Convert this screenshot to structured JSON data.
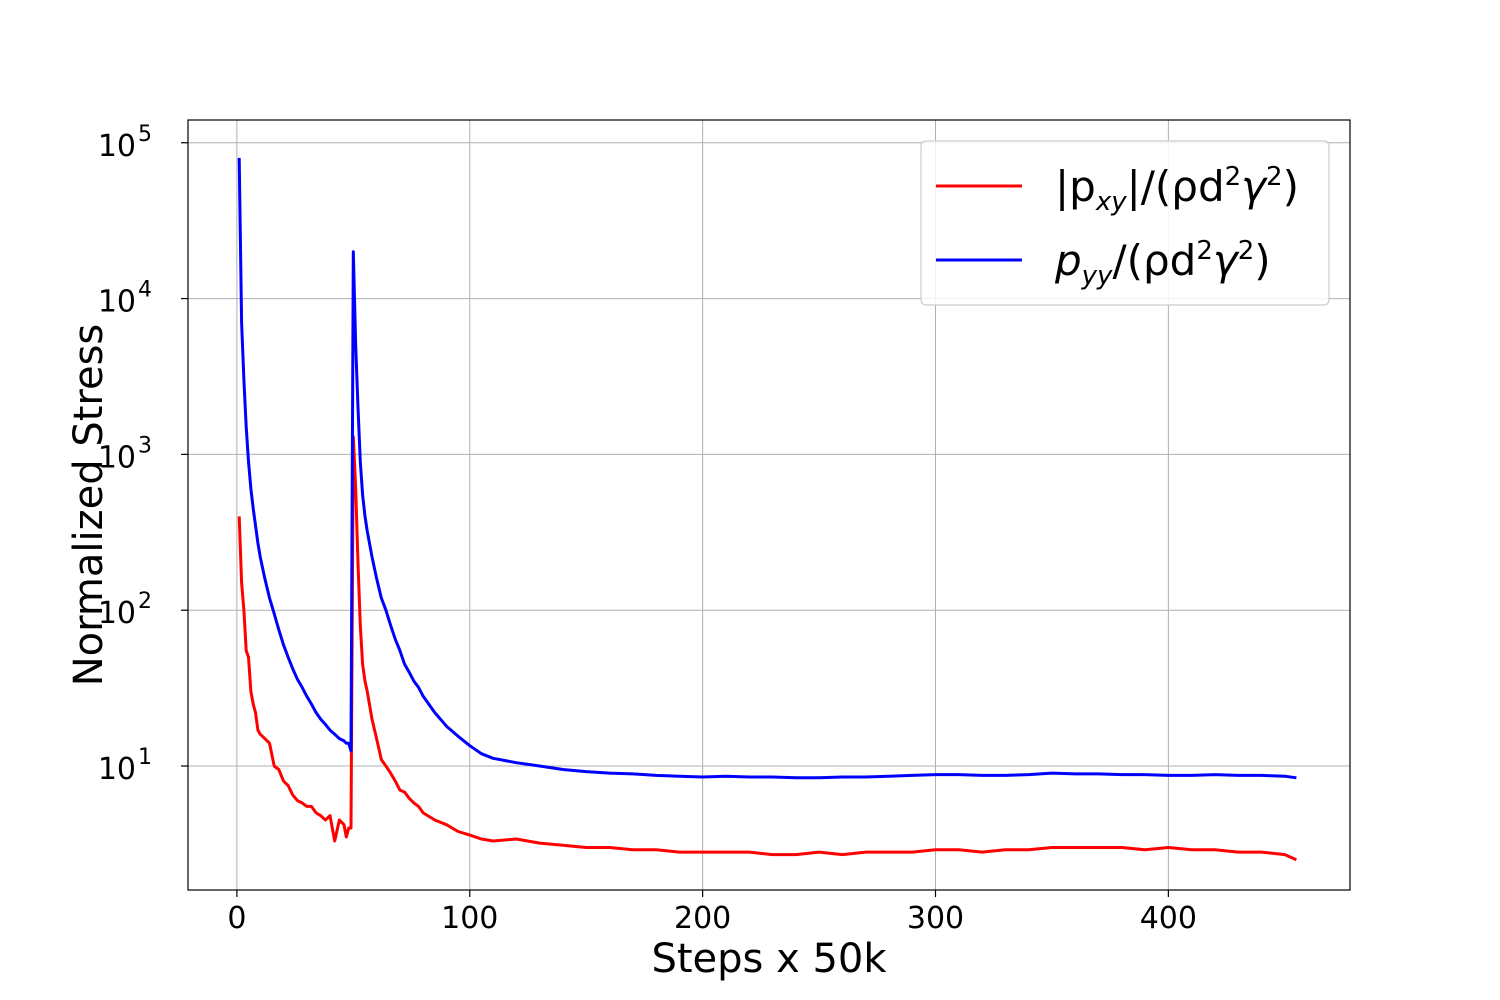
{
  "chart_data": {
    "type": "line",
    "xlabel": "Steps x 50k",
    "ylabel": "Normalized Stress",
    "xlim": [
      -21,
      478
    ],
    "ylim": [
      1.6,
      140000
    ],
    "yscale": "log",
    "grid": true,
    "legend_position": "top-right",
    "x_ticks": [
      0,
      100,
      200,
      300,
      400
    ],
    "y_ticks": [
      {
        "value": 10,
        "base": "10",
        "exp": "1"
      },
      {
        "value": 100,
        "base": "10",
        "exp": "2"
      },
      {
        "value": 1000,
        "base": "10",
        "exp": "3"
      },
      {
        "value": 10000,
        "base": "10",
        "exp": "4"
      },
      {
        "value": 100000,
        "base": "10",
        "exp": "5"
      }
    ],
    "series": [
      {
        "name": "|pxy|/(ρd2γ2)",
        "legend": {
          "pre": "|p",
          "sub": "xy",
          "mid": "|/(ρd",
          "sup1": "2",
          "mid2": "γ",
          "sup2": "2",
          "post": ")"
        },
        "color": "#ff0000",
        "x": [
          1,
          2,
          3,
          4,
          5,
          6,
          7,
          8,
          9,
          10,
          12,
          14,
          16,
          18,
          20,
          22,
          24,
          26,
          28,
          30,
          32,
          34,
          36,
          38,
          40,
          42,
          44,
          46,
          47,
          48,
          49,
          50,
          51,
          52,
          53,
          54,
          55,
          56,
          58,
          60,
          62,
          64,
          66,
          68,
          70,
          72,
          74,
          76,
          78,
          80,
          85,
          90,
          95,
          100,
          105,
          110,
          120,
          130,
          140,
          150,
          160,
          170,
          180,
          190,
          200,
          210,
          220,
          230,
          240,
          250,
          260,
          270,
          280,
          290,
          300,
          310,
          320,
          330,
          340,
          350,
          360,
          370,
          380,
          390,
          400,
          410,
          420,
          430,
          440,
          450,
          455
        ],
        "y": [
          400,
          150,
          100,
          55,
          50,
          30,
          25,
          22,
          17,
          16,
          15,
          14,
          10,
          9.5,
          8,
          7.5,
          6.5,
          6,
          5.8,
          5.5,
          5.5,
          5.0,
          4.8,
          4.5,
          4.8,
          3.3,
          4.5,
          4.2,
          3.5,
          4.0,
          4.0,
          1300,
          600,
          200,
          80,
          45,
          35,
          30,
          20,
          15,
          11,
          10,
          9,
          8,
          7,
          6.8,
          6.2,
          5.8,
          5.5,
          5.0,
          4.5,
          4.2,
          3.8,
          3.6,
          3.4,
          3.3,
          3.4,
          3.2,
          3.1,
          3.0,
          3.0,
          2.9,
          2.9,
          2.8,
          2.8,
          2.8,
          2.8,
          2.7,
          2.7,
          2.8,
          2.7,
          2.8,
          2.8,
          2.8,
          2.9,
          2.9,
          2.8,
          2.9,
          2.9,
          3.0,
          3.0,
          3.0,
          3.0,
          2.9,
          3.0,
          2.9,
          2.9,
          2.8,
          2.8,
          2.7,
          2.5
        ]
      },
      {
        "name": "pyy/(ρd2γ2)",
        "legend": {
          "pre": "p",
          "sub": "yy",
          "mid": "/(ρd",
          "sup1": "2",
          "mid2": "γ",
          "sup2": "2",
          "post": ")"
        },
        "color": "#0000ff",
        "x": [
          1,
          2,
          3,
          4,
          5,
          6,
          7,
          8,
          9,
          10,
          12,
          14,
          16,
          18,
          20,
          22,
          24,
          26,
          28,
          30,
          32,
          34,
          36,
          38,
          40,
          42,
          44,
          46,
          47,
          48,
          49,
          50,
          51,
          52,
          53,
          54,
          55,
          56,
          58,
          60,
          62,
          64,
          66,
          68,
          70,
          72,
          74,
          76,
          78,
          80,
          85,
          90,
          95,
          100,
          105,
          110,
          120,
          130,
          140,
          150,
          160,
          170,
          180,
          190,
          200,
          210,
          220,
          230,
          240,
          250,
          260,
          270,
          280,
          290,
          300,
          310,
          320,
          330,
          340,
          350,
          360,
          370,
          380,
          390,
          400,
          410,
          420,
          430,
          440,
          450,
          455
        ],
        "y": [
          80000,
          7000,
          3000,
          1500,
          900,
          600,
          450,
          350,
          270,
          220,
          160,
          120,
          95,
          75,
          60,
          50,
          42,
          36,
          32,
          28,
          25,
          22,
          20,
          18.5,
          17,
          16,
          15,
          14.5,
          14,
          14,
          12.5,
          20000,
          5000,
          2000,
          900,
          550,
          400,
          320,
          220,
          160,
          120,
          100,
          80,
          65,
          55,
          45,
          40,
          35,
          32,
          28,
          22,
          18,
          15.5,
          13.5,
          12,
          11.2,
          10.5,
          10,
          9.5,
          9.2,
          9.0,
          8.9,
          8.7,
          8.6,
          8.5,
          8.6,
          8.5,
          8.5,
          8.4,
          8.4,
          8.5,
          8.5,
          8.6,
          8.7,
          8.8,
          8.8,
          8.7,
          8.7,
          8.8,
          9.0,
          8.9,
          8.9,
          8.8,
          8.8,
          8.7,
          8.7,
          8.8,
          8.7,
          8.7,
          8.6,
          8.4
        ]
      }
    ]
  }
}
